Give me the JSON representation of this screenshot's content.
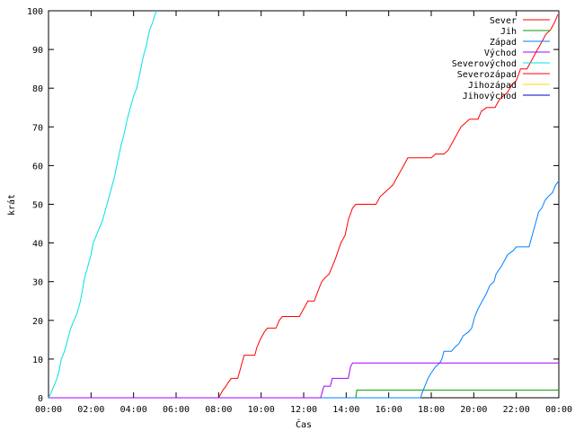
{
  "chart_data": {
    "type": "line",
    "title": "",
    "xlabel": "Čas",
    "ylabel": "krát",
    "x_ticks": [
      "00:00",
      "02:00",
      "04:00",
      "06:00",
      "08:00",
      "10:00",
      "12:00",
      "14:00",
      "16:00",
      "18:00",
      "20:00",
      "22:00",
      "00:00"
    ],
    "xlim_hours": [
      0,
      24
    ],
    "ylim": [
      0,
      100
    ],
    "y_ticks": [
      "0",
      "10",
      "20",
      "30",
      "40",
      "50",
      "60",
      "70",
      "80",
      "90",
      "100"
    ],
    "grid": false,
    "legend_position": "top-right",
    "series": [
      {
        "name": "Sever",
        "color": "#ff0000",
        "points": [
          [
            0,
            0
          ],
          [
            8.0,
            0
          ],
          [
            8.1,
            1
          ],
          [
            8.2,
            2
          ],
          [
            8.35,
            3
          ],
          [
            8.45,
            4
          ],
          [
            8.6,
            5
          ],
          [
            8.9,
            5
          ],
          [
            9.05,
            8
          ],
          [
            9.2,
            11
          ],
          [
            9.7,
            11
          ],
          [
            9.8,
            13
          ],
          [
            9.95,
            15
          ],
          [
            10.15,
            17
          ],
          [
            10.3,
            18
          ],
          [
            10.7,
            18
          ],
          [
            10.85,
            20
          ],
          [
            11.0,
            21
          ],
          [
            11.8,
            21
          ],
          [
            12.0,
            23
          ],
          [
            12.2,
            25
          ],
          [
            12.5,
            25
          ],
          [
            12.7,
            28
          ],
          [
            12.85,
            30
          ],
          [
            13.0,
            31
          ],
          [
            13.2,
            32
          ],
          [
            13.5,
            36
          ],
          [
            13.75,
            40
          ],
          [
            13.95,
            42
          ],
          [
            14.1,
            46
          ],
          [
            14.3,
            49
          ],
          [
            14.45,
            50
          ],
          [
            15.4,
            50
          ],
          [
            15.6,
            52
          ],
          [
            15.8,
            53
          ],
          [
            16.0,
            54
          ],
          [
            16.2,
            55
          ],
          [
            16.4,
            57
          ],
          [
            16.6,
            59
          ],
          [
            16.8,
            61
          ],
          [
            16.9,
            62
          ],
          [
            18.0,
            62
          ],
          [
            18.2,
            63
          ],
          [
            18.6,
            63
          ],
          [
            18.8,
            64
          ],
          [
            19.0,
            66
          ],
          [
            19.2,
            68
          ],
          [
            19.4,
            70
          ],
          [
            19.6,
            71
          ],
          [
            19.8,
            72
          ],
          [
            20.2,
            72
          ],
          [
            20.35,
            74
          ],
          [
            20.6,
            75
          ],
          [
            21.0,
            75
          ],
          [
            21.2,
            77
          ],
          [
            21.4,
            78
          ],
          [
            21.6,
            79
          ],
          [
            21.8,
            81
          ],
          [
            22.0,
            82
          ],
          [
            22.2,
            85
          ],
          [
            22.5,
            85
          ],
          [
            22.8,
            88
          ],
          [
            23.0,
            90
          ],
          [
            23.2,
            92
          ],
          [
            23.4,
            94
          ],
          [
            23.6,
            95
          ],
          [
            23.8,
            97
          ],
          [
            23.95,
            99
          ]
        ]
      },
      {
        "name": "Jih",
        "color": "#00a000",
        "points": [
          [
            0,
            0
          ],
          [
            14.45,
            0
          ],
          [
            14.5,
            2
          ],
          [
            24,
            2
          ]
        ]
      },
      {
        "name": "Západ",
        "color": "#0080ff",
        "points": [
          [
            0,
            0
          ],
          [
            17.5,
            0
          ],
          [
            17.55,
            1
          ],
          [
            17.7,
            3
          ],
          [
            17.85,
            5
          ],
          [
            17.95,
            6
          ],
          [
            18.2,
            8
          ],
          [
            18.4,
            9
          ],
          [
            18.5,
            10
          ],
          [
            18.6,
            12
          ],
          [
            18.95,
            12
          ],
          [
            19.1,
            13
          ],
          [
            19.3,
            14
          ],
          [
            19.5,
            16
          ],
          [
            19.75,
            17
          ],
          [
            19.9,
            18
          ],
          [
            20.05,
            21
          ],
          [
            20.2,
            23
          ],
          [
            20.4,
            25
          ],
          [
            20.6,
            27
          ],
          [
            20.75,
            29
          ],
          [
            20.95,
            30
          ],
          [
            21.05,
            32
          ],
          [
            21.3,
            34
          ],
          [
            21.5,
            36
          ],
          [
            21.6,
            37
          ],
          [
            21.85,
            38
          ],
          [
            22.0,
            39
          ],
          [
            22.6,
            39
          ],
          [
            22.75,
            42
          ],
          [
            22.9,
            45
          ],
          [
            23.05,
            48
          ],
          [
            23.2,
            49
          ],
          [
            23.35,
            51
          ],
          [
            23.5,
            52
          ],
          [
            23.7,
            53
          ],
          [
            23.85,
            55
          ],
          [
            24,
            56
          ]
        ]
      },
      {
        "name": "Východ",
        "color": "#a000ff",
        "points": [
          [
            0,
            0
          ],
          [
            12.8,
            0
          ],
          [
            12.85,
            1
          ],
          [
            12.95,
            3
          ],
          [
            13.25,
            3
          ],
          [
            13.35,
            5
          ],
          [
            14.1,
            5
          ],
          [
            14.2,
            8
          ],
          [
            14.3,
            9
          ],
          [
            24,
            9
          ]
        ]
      },
      {
        "name": "Severovýchod",
        "color": "#00e0e0",
        "points": [
          [
            0,
            0
          ],
          [
            0.1,
            1
          ],
          [
            0.25,
            3
          ],
          [
            0.4,
            5
          ],
          [
            0.5,
            7
          ],
          [
            0.6,
            10
          ],
          [
            0.75,
            12
          ],
          [
            0.9,
            15
          ],
          [
            1.05,
            18
          ],
          [
            1.2,
            20
          ],
          [
            1.35,
            22
          ],
          [
            1.5,
            25
          ],
          [
            1.6,
            28
          ],
          [
            1.7,
            31
          ],
          [
            1.85,
            34
          ],
          [
            2.0,
            37
          ],
          [
            2.1,
            40
          ],
          [
            2.25,
            42
          ],
          [
            2.4,
            44
          ],
          [
            2.55,
            46
          ],
          [
            2.7,
            49
          ],
          [
            2.85,
            52
          ],
          [
            3.0,
            55
          ],
          [
            3.1,
            57
          ],
          [
            3.25,
            61
          ],
          [
            3.4,
            65
          ],
          [
            3.55,
            68
          ],
          [
            3.7,
            72
          ],
          [
            3.85,
            75
          ],
          [
            4.0,
            78
          ],
          [
            4.15,
            80
          ],
          [
            4.3,
            84
          ],
          [
            4.45,
            88
          ],
          [
            4.6,
            91
          ],
          [
            4.75,
            95
          ],
          [
            4.9,
            97
          ],
          [
            5.0,
            99
          ],
          [
            5.1,
            100
          ]
        ]
      },
      {
        "name": "Severozápad",
        "color": "#ff0000",
        "points": []
      },
      {
        "name": "Jihozápad",
        "color": "#ffd700",
        "points": []
      },
      {
        "name": "Jihovýchod",
        "color": "#0000c0",
        "points": []
      }
    ]
  }
}
